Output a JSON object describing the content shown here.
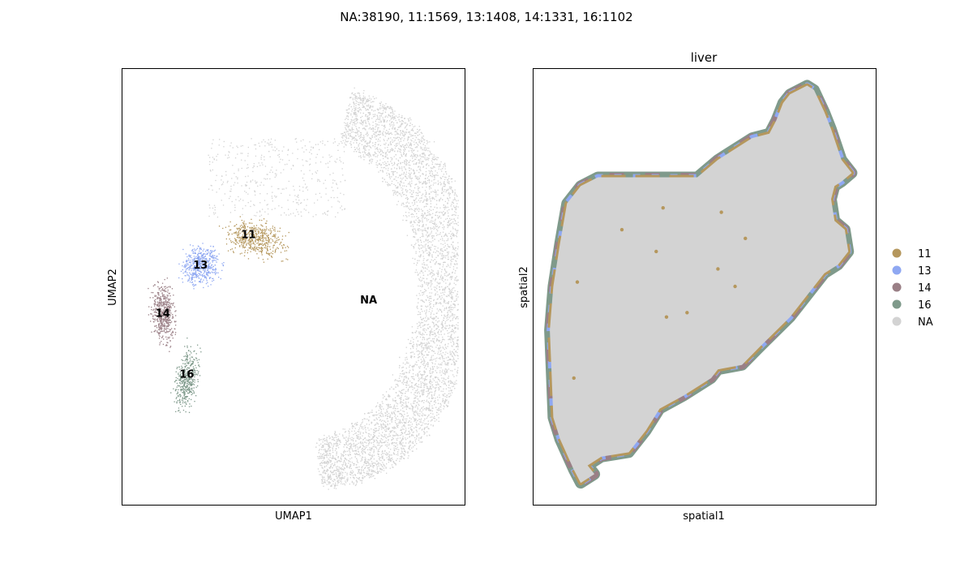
{
  "figure": {
    "suptitle": "NA:38190, 11:1569, 13:1408, 14:1331, 16:1102"
  },
  "colors": {
    "11": "#b5975d",
    "13": "#8fa8f2",
    "14": "#9a7f86",
    "16": "#7f9a8b",
    "NA": "#d3d3d3"
  },
  "legend": {
    "placement": "right-outside",
    "items": [
      {
        "label": "11",
        "color": "#b5975d"
      },
      {
        "label": "13",
        "color": "#8fa8f2"
      },
      {
        "label": "14",
        "color": "#9a7f86"
      },
      {
        "label": "16",
        "color": "#7f9a8b"
      },
      {
        "label": "NA",
        "color": "#d3d3d3"
      }
    ]
  },
  "chart_data": [
    {
      "type": "scatter",
      "title": "",
      "xlabel": "UMAP1",
      "ylabel": "UMAP2",
      "xlim": [
        0,
        10
      ],
      "ylim": [
        0,
        10
      ],
      "ticks": "none",
      "grid": false,
      "clusters": [
        {
          "name": "NA",
          "count": 38190,
          "color": "#d3d3d3",
          "label_pos": [
            7.2,
            4.7
          ]
        },
        {
          "name": "11",
          "count": 1569,
          "color": "#b5975d",
          "label_pos": [
            3.7,
            6.2
          ]
        },
        {
          "name": "13",
          "count": 1408,
          "color": "#8fa8f2",
          "label_pos": [
            2.3,
            5.5
          ]
        },
        {
          "name": "14",
          "count": 1331,
          "color": "#9a7f86",
          "label_pos": [
            1.2,
            4.4
          ]
        },
        {
          "name": "16",
          "count": 1102,
          "color": "#7f9a8b",
          "label_pos": [
            1.9,
            3.0
          ]
        }
      ]
    },
    {
      "type": "scatter",
      "title": "liver",
      "xlabel": "spatial1",
      "ylabel": "spatial2",
      "xlim": [
        0,
        10
      ],
      "ylim": [
        0,
        10
      ],
      "ticks": "none",
      "grid": false,
      "tissue_outline": [
        [
          7.5,
          9.4
        ],
        [
          8.0,
          9.6
        ],
        [
          8.2,
          9.5
        ],
        [
          8.5,
          9.0
        ],
        [
          8.7,
          8.6
        ],
        [
          9.0,
          7.9
        ],
        [
          9.3,
          7.6
        ],
        [
          9.0,
          7.4
        ],
        [
          8.8,
          7.3
        ],
        [
          8.7,
          7.0
        ],
        [
          8.8,
          6.5
        ],
        [
          9.1,
          6.3
        ],
        [
          9.2,
          5.8
        ],
        [
          8.9,
          5.5
        ],
        [
          8.5,
          5.3
        ],
        [
          8.1,
          4.9
        ],
        [
          7.5,
          4.3
        ],
        [
          6.6,
          3.6
        ],
        [
          6.1,
          3.2
        ],
        [
          5.4,
          3.1
        ],
        [
          5.2,
          2.9
        ],
        [
          4.4,
          2.5
        ],
        [
          3.7,
          2.2
        ],
        [
          3.3,
          1.7
        ],
        [
          2.8,
          1.2
        ],
        [
          2.0,
          1.1
        ],
        [
          1.6,
          0.9
        ],
        [
          1.8,
          0.7
        ],
        [
          1.4,
          0.5
        ],
        [
          1.2,
          0.8
        ],
        [
          0.8,
          1.5
        ],
        [
          0.6,
          2.0
        ],
        [
          0.55,
          3.0
        ],
        [
          0.5,
          4.0
        ],
        [
          0.6,
          5.0
        ],
        [
          0.8,
          6.0
        ],
        [
          1.0,
          6.9
        ],
        [
          1.4,
          7.3
        ],
        [
          1.9,
          7.5
        ],
        [
          3.0,
          7.5
        ],
        [
          4.8,
          7.5
        ],
        [
          5.4,
          7.9
        ],
        [
          6.4,
          8.4
        ],
        [
          6.9,
          8.5
        ],
        [
          7.1,
          8.8
        ],
        [
          7.3,
          9.2
        ]
      ]
    }
  ]
}
